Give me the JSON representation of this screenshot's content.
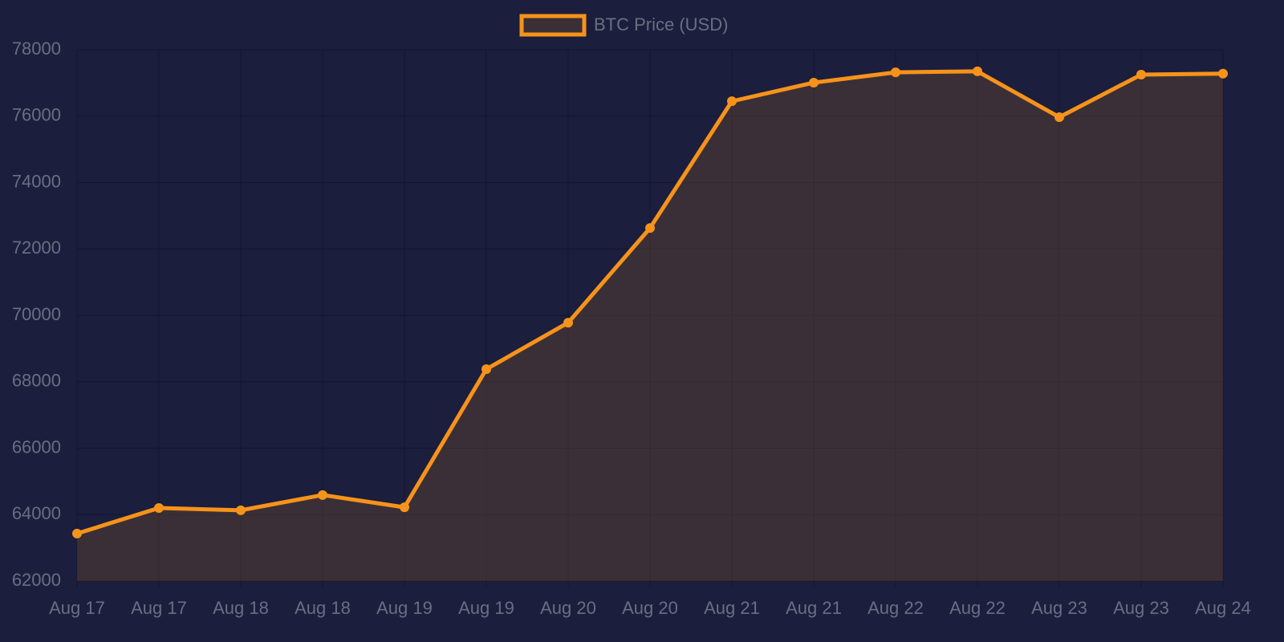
{
  "chart_data": {
    "type": "line",
    "fill": true,
    "grid": true,
    "legend": "top",
    "categories": [
      "Aug 17",
      "Aug 17",
      "Aug 18",
      "Aug 18",
      "Aug 19",
      "Aug 19",
      "Aug 20",
      "Aug 20",
      "Aug 21",
      "Aug 21",
      "Aug 22",
      "Aug 22",
      "Aug 23",
      "Aug 23",
      "Aug 24"
    ],
    "series": [
      {
        "name": "BTC Price (USD)",
        "color": "#f7931a",
        "values": [
          63430,
          64200,
          64130,
          64590,
          64220,
          68380,
          69780,
          72630,
          76450,
          77010,
          77320,
          77350,
          75970,
          77250,
          77280
        ]
      }
    ],
    "ylim": [
      62000,
      78000
    ],
    "yticks": [
      62000,
      64000,
      66000,
      68000,
      70000,
      72000,
      74000,
      76000,
      78000
    ]
  }
}
